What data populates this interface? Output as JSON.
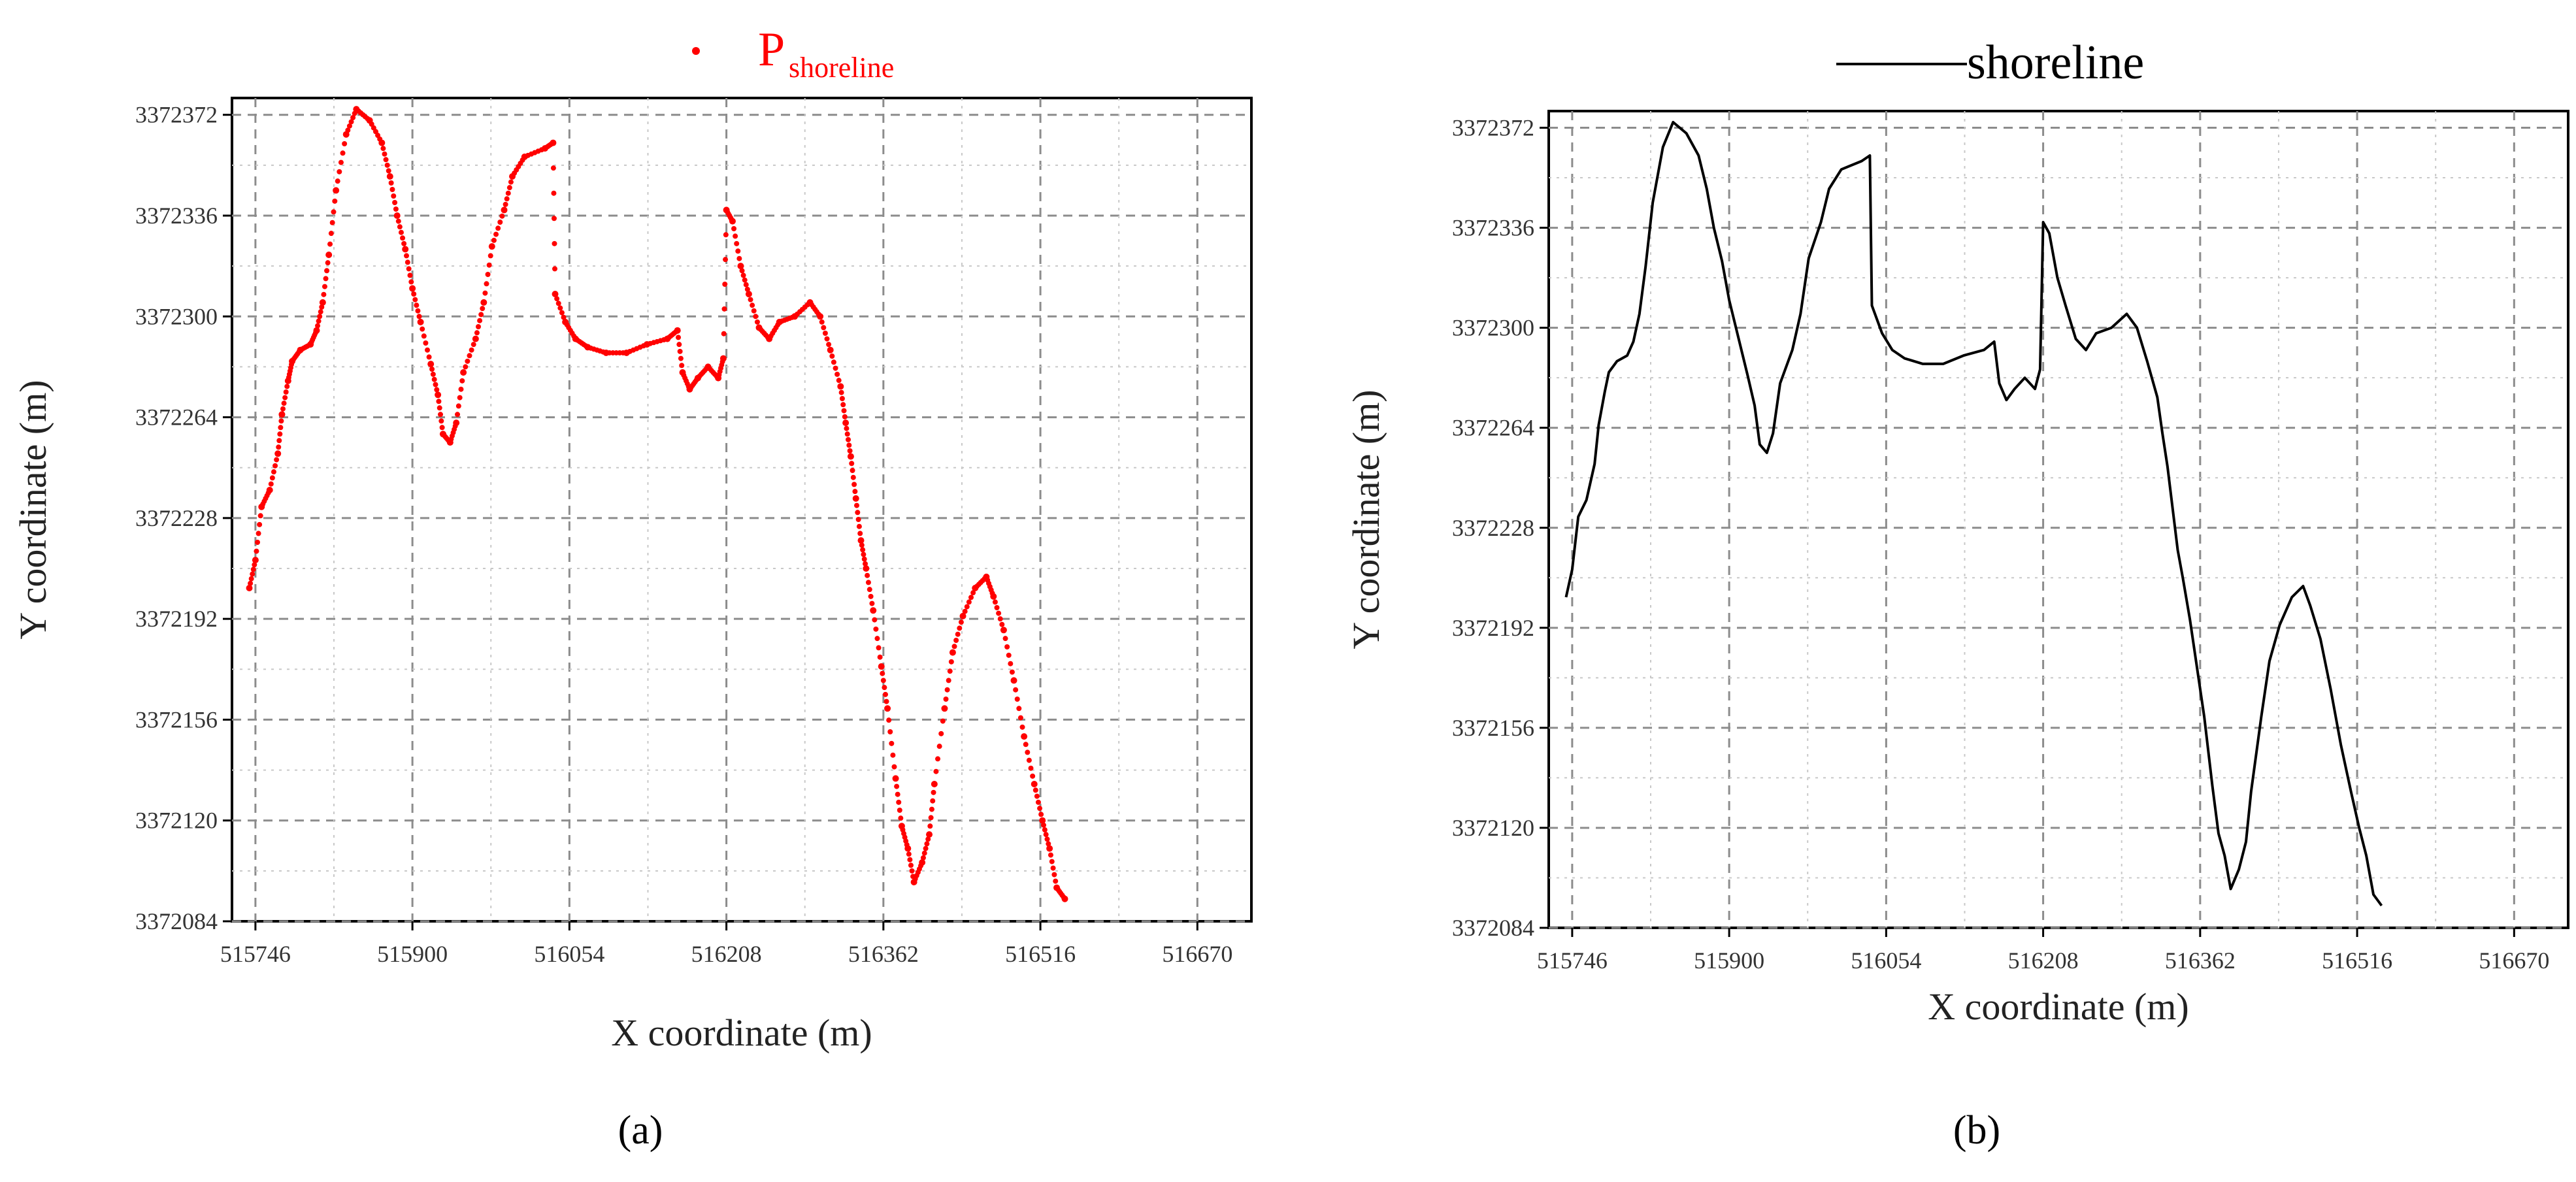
{
  "chart_data": [
    {
      "panel": "(a)",
      "type": "scatter",
      "color": "#ff0000",
      "legend": {
        "main": "P",
        "sub": "shoreline",
        "position": "top-center"
      },
      "xlabel": "X coordinate (m)",
      "ylabel": "Y coordinate (m)",
      "xlim": [
        515723,
        516723
      ],
      "ylim": [
        3372084,
        3372378
      ],
      "xticks": [
        515746,
        515900,
        516054,
        516208,
        516362,
        516516,
        516670
      ],
      "yticks": [
        3372084,
        3372120,
        3372156,
        3372192,
        3372228,
        3372264,
        3372300,
        3372336,
        3372372
      ],
      "grid": true,
      "points": [
        [
          515740,
          3372203
        ],
        [
          515746,
          3372213
        ],
        [
          515752,
          3372232
        ],
        [
          515760,
          3372238
        ],
        [
          515768,
          3372251
        ],
        [
          515772,
          3372265
        ],
        [
          515778,
          3372277
        ],
        [
          515782,
          3372284
        ],
        [
          515790,
          3372288
        ],
        [
          515800,
          3372290
        ],
        [
          515806,
          3372295
        ],
        [
          515812,
          3372305
        ],
        [
          515818,
          3372322
        ],
        [
          515825,
          3372345
        ],
        [
          515835,
          3372365
        ],
        [
          515845,
          3372374
        ],
        [
          515858,
          3372370
        ],
        [
          515870,
          3372362
        ],
        [
          515878,
          3372350
        ],
        [
          515885,
          3372336
        ],
        [
          515893,
          3372324
        ],
        [
          515900,
          3372310
        ],
        [
          515908,
          3372298
        ],
        [
          515918,
          3372283
        ],
        [
          515925,
          3372272
        ],
        [
          515930,
          3372258
        ],
        [
          515937,
          3372255
        ],
        [
          515943,
          3372262
        ],
        [
          515950,
          3372280
        ],
        [
          515962,
          3372292
        ],
        [
          515970,
          3372305
        ],
        [
          515978,
          3372325
        ],
        [
          515990,
          3372338
        ],
        [
          515998,
          3372350
        ],
        [
          516010,
          3372357
        ],
        [
          516030,
          3372360
        ],
        [
          516038,
          3372362
        ],
        [
          516040,
          3372308
        ],
        [
          516050,
          3372298
        ],
        [
          516060,
          3372292
        ],
        [
          516072,
          3372289
        ],
        [
          516090,
          3372287
        ],
        [
          516110,
          3372287
        ],
        [
          516130,
          3372290
        ],
        [
          516150,
          3372292
        ],
        [
          516160,
          3372295
        ],
        [
          516165,
          3372280
        ],
        [
          516172,
          3372274
        ],
        [
          516180,
          3372278
        ],
        [
          516190,
          3372282
        ],
        [
          516200,
          3372278
        ],
        [
          516205,
          3372285
        ],
        [
          516208,
          3372338
        ],
        [
          516214,
          3372334
        ],
        [
          516222,
          3372318
        ],
        [
          516230,
          3372308
        ],
        [
          516240,
          3372296
        ],
        [
          516250,
          3372292
        ],
        [
          516260,
          3372298
        ],
        [
          516275,
          3372300
        ],
        [
          516290,
          3372305
        ],
        [
          516300,
          3372300
        ],
        [
          516310,
          3372288
        ],
        [
          516320,
          3372275
        ],
        [
          516325,
          3372262
        ],
        [
          516330,
          3372250
        ],
        [
          516335,
          3372235
        ],
        [
          516340,
          3372220
        ],
        [
          516345,
          3372210
        ],
        [
          516352,
          3372195
        ],
        [
          516360,
          3372175
        ],
        [
          516366,
          3372160
        ],
        [
          516374,
          3372135
        ],
        [
          516380,
          3372118
        ],
        [
          516386,
          3372110
        ],
        [
          516392,
          3372098
        ],
        [
          516400,
          3372105
        ],
        [
          516407,
          3372115
        ],
        [
          516412,
          3372133
        ],
        [
          516422,
          3372160
        ],
        [
          516430,
          3372180
        ],
        [
          516440,
          3372193
        ],
        [
          516452,
          3372203
        ],
        [
          516463,
          3372207
        ],
        [
          516470,
          3372200
        ],
        [
          516480,
          3372188
        ],
        [
          516490,
          3372170
        ],
        [
          516500,
          3372150
        ],
        [
          516510,
          3372133
        ],
        [
          516518,
          3372120
        ],
        [
          516525,
          3372110
        ],
        [
          516532,
          3372096
        ],
        [
          516540,
          3372092
        ]
      ]
    },
    {
      "panel": "(b)",
      "type": "line",
      "color": "#000000",
      "legend": {
        "main": "shoreline",
        "position": "top-center"
      },
      "xlabel": "X coordinate (m)",
      "ylabel": "Y coordinate (m)",
      "xlim": [
        515723,
        516723
      ],
      "ylim": [
        3372084,
        3372378
      ],
      "xticks": [
        515746,
        515900,
        516054,
        516208,
        516362,
        516516,
        516670
      ],
      "yticks": [
        3372084,
        3372120,
        3372156,
        3372192,
        3372228,
        3372264,
        3372300,
        3372336,
        3372372
      ],
      "grid": true,
      "points": [
        [
          515740,
          3372203
        ],
        [
          515746,
          3372213
        ],
        [
          515752,
          3372232
        ],
        [
          515760,
          3372238
        ],
        [
          515768,
          3372251
        ],
        [
          515772,
          3372265
        ],
        [
          515778,
          3372277
        ],
        [
          515782,
          3372284
        ],
        [
          515790,
          3372288
        ],
        [
          515800,
          3372290
        ],
        [
          515806,
          3372295
        ],
        [
          515812,
          3372305
        ],
        [
          515818,
          3372322
        ],
        [
          515825,
          3372345
        ],
        [
          515835,
          3372365
        ],
        [
          515845,
          3372374
        ],
        [
          515858,
          3372370
        ],
        [
          515870,
          3372362
        ],
        [
          515878,
          3372350
        ],
        [
          515885,
          3372336
        ],
        [
          515893,
          3372324
        ],
        [
          515900,
          3372310
        ],
        [
          515908,
          3372298
        ],
        [
          515918,
          3372283
        ],
        [
          515925,
          3372272
        ],
        [
          515930,
          3372258
        ],
        [
          515937,
          3372255
        ],
        [
          515943,
          3372262
        ],
        [
          515950,
          3372280
        ],
        [
          515962,
          3372292
        ],
        [
          515970,
          3372305
        ],
        [
          515978,
          3372325
        ],
        [
          515990,
          3372338
        ],
        [
          515998,
          3372350
        ],
        [
          516010,
          3372357
        ],
        [
          516030,
          3372360
        ],
        [
          516038,
          3372362
        ],
        [
          516040,
          3372308
        ],
        [
          516050,
          3372298
        ],
        [
          516060,
          3372292
        ],
        [
          516072,
          3372289
        ],
        [
          516090,
          3372287
        ],
        [
          516110,
          3372287
        ],
        [
          516130,
          3372290
        ],
        [
          516150,
          3372292
        ],
        [
          516160,
          3372295
        ],
        [
          516165,
          3372280
        ],
        [
          516172,
          3372274
        ],
        [
          516180,
          3372278
        ],
        [
          516190,
          3372282
        ],
        [
          516200,
          3372278
        ],
        [
          516205,
          3372285
        ],
        [
          516208,
          3372338
        ],
        [
          516214,
          3372334
        ],
        [
          516222,
          3372318
        ],
        [
          516230,
          3372308
        ],
        [
          516240,
          3372296
        ],
        [
          516250,
          3372292
        ],
        [
          516260,
          3372298
        ],
        [
          516275,
          3372300
        ],
        [
          516290,
          3372305
        ],
        [
          516300,
          3372300
        ],
        [
          516310,
          3372288
        ],
        [
          516320,
          3372275
        ],
        [
          516325,
          3372262
        ],
        [
          516330,
          3372250
        ],
        [
          516335,
          3372235
        ],
        [
          516340,
          3372220
        ],
        [
          516345,
          3372210
        ],
        [
          516352,
          3372195
        ],
        [
          516360,
          3372175
        ],
        [
          516366,
          3372160
        ],
        [
          516374,
          3372135
        ],
        [
          516380,
          3372118
        ],
        [
          516386,
          3372110
        ],
        [
          516392,
          3372098
        ],
        [
          516400,
          3372105
        ],
        [
          516407,
          3372115
        ],
        [
          516412,
          3372133
        ],
        [
          516422,
          3372160
        ],
        [
          516430,
          3372180
        ],
        [
          516440,
          3372193
        ],
        [
          516452,
          3372203
        ],
        [
          516463,
          3372207
        ],
        [
          516470,
          3372200
        ],
        [
          516480,
          3372188
        ],
        [
          516490,
          3372170
        ],
        [
          516500,
          3372150
        ],
        [
          516510,
          3372133
        ],
        [
          516518,
          3372120
        ],
        [
          516525,
          3372110
        ],
        [
          516532,
          3372096
        ],
        [
          516540,
          3372092
        ]
      ]
    }
  ]
}
